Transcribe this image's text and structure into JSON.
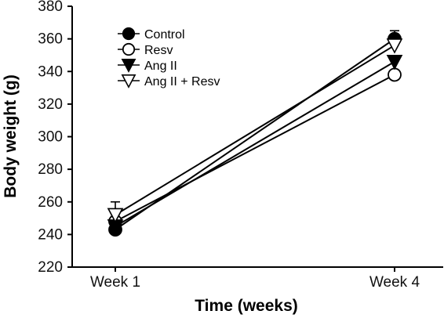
{
  "chart_data": {
    "type": "line",
    "title": "",
    "xlabel": "Time (weeks)",
    "ylabel": "Body weight (g)",
    "categories": [
      "Week 1",
      "Week 4"
    ],
    "ylim": [
      220,
      380
    ],
    "yticks": [
      220,
      240,
      260,
      280,
      300,
      320,
      340,
      360,
      380
    ],
    "grid": false,
    "legend_position": "top-left",
    "series": [
      {
        "name": "Control",
        "marker": "circle-filled",
        "values": [
          243,
          360
        ],
        "error": [
          2,
          5
        ]
      },
      {
        "name": "Resv",
        "marker": "circle-open",
        "values": [
          248,
          338
        ],
        "error": [
          3,
          2
        ]
      },
      {
        "name": "Ang II",
        "marker": "triangle-down-filled",
        "values": [
          245,
          346
        ],
        "error": [
          2,
          3
        ]
      },
      {
        "name": "Ang II + Resv",
        "marker": "triangle-down-open",
        "values": [
          252,
          356
        ],
        "error": [
          8,
          5
        ]
      }
    ]
  }
}
